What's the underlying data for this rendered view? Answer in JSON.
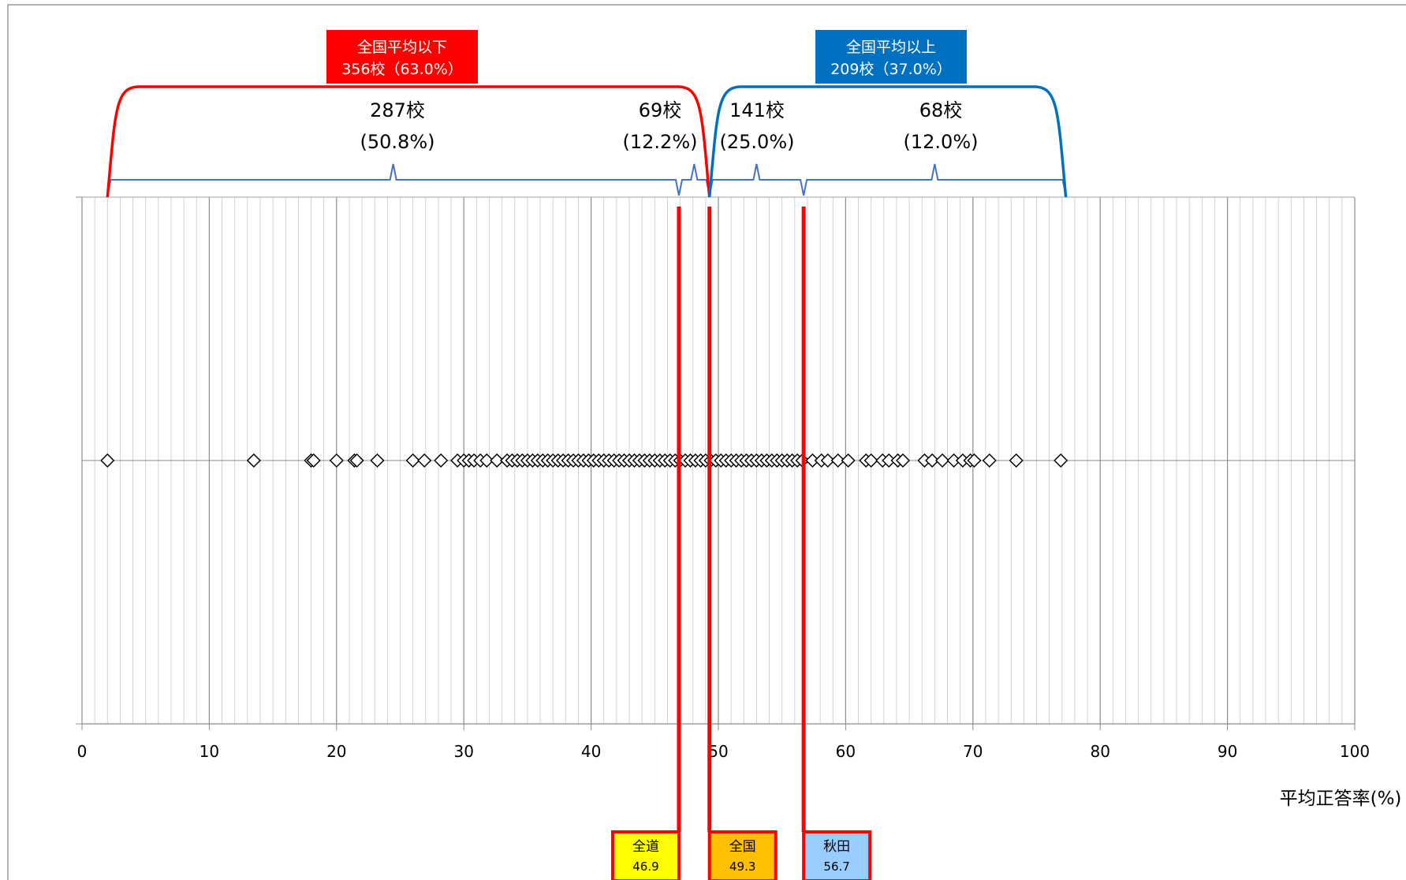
{
  "chart_data": {
    "type": "scatter",
    "title": "",
    "xlabel": "平均正答率(%)",
    "ylabel": "",
    "xlim": [
      0,
      100
    ],
    "x_ticks": [
      "0",
      "10",
      "20",
      "30",
      "40",
      "50",
      "60",
      "70",
      "80",
      "90",
      "100"
    ],
    "grid": true,
    "marker": "diamond-open",
    "series": [
      {
        "values": [
          2.0,
          13.5,
          18.0,
          18.2,
          20.0,
          21.4,
          21.6,
          23.2,
          26.0,
          26.9,
          28.2,
          29.5,
          30.0,
          30.4,
          30.8,
          31.3,
          31.8,
          32.6,
          33.4,
          33.8,
          34.2,
          34.6,
          35.0,
          35.4,
          35.8,
          36.2,
          36.6,
          37.0,
          37.4,
          37.8,
          38.2,
          38.6,
          39.0,
          39.4,
          39.8,
          40.2,
          40.6,
          41.0,
          41.4,
          41.8,
          42.2,
          42.6,
          43.0,
          43.4,
          43.8,
          44.2,
          44.6,
          45.0,
          45.4,
          45.8,
          46.2,
          46.6,
          47.0,
          47.4,
          47.8,
          48.2,
          48.6,
          49.0,
          49.4,
          49.8,
          50.2,
          50.6,
          51.0,
          51.4,
          51.8,
          52.2,
          52.6,
          53.0,
          53.4,
          53.8,
          54.2,
          54.6,
          55.0,
          55.4,
          55.8,
          56.2,
          56.6,
          57.4,
          58.1,
          58.6,
          59.4,
          60.2,
          61.6,
          62.0,
          62.9,
          63.4,
          64.1,
          64.5,
          66.2,
          66.8,
          67.6,
          68.5,
          69.2,
          69.8,
          70.1,
          71.3,
          73.4,
          76.9
        ],
        "y": 0
      }
    ],
    "reference_lines": [
      {
        "label": "全道",
        "value": "46.9",
        "x": 46.9,
        "color": "#ffff00"
      },
      {
        "label": "全国",
        "value": "49.3",
        "x": 49.3,
        "color": "#ffc000"
      },
      {
        "label": "秋田",
        "value": "56.7",
        "x": 56.7,
        "color": "#99ccff"
      }
    ],
    "segments": [
      {
        "count": "287校",
        "percent": "(50.8%)",
        "from": 2.0,
        "to": 46.9
      },
      {
        "count": "69校",
        "percent": "(12.2%)",
        "from": 46.9,
        "to": 49.3
      },
      {
        "count": "141校",
        "percent": "(25.0%)",
        "from": 49.3,
        "to": 56.7
      },
      {
        "count": "68校",
        "percent": "(12.0%)",
        "from": 56.7,
        "to": 77.3
      }
    ],
    "groups": [
      {
        "title": "全国平均以下",
        "detail": "356校（63.0%）",
        "from": 2.0,
        "to": 49.3,
        "color": "#ff0000"
      },
      {
        "title": "全国平均以上",
        "detail": "209校（37.0%）",
        "from": 49.3,
        "to": 77.3,
        "color": "#0070c0"
      }
    ]
  }
}
